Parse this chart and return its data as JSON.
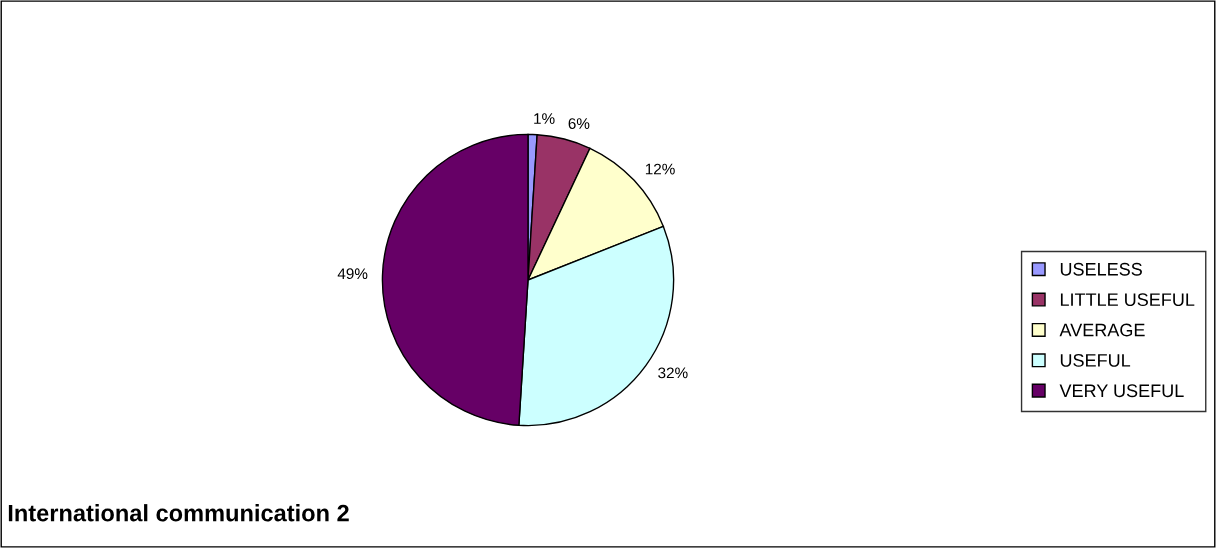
{
  "chart_data": {
    "type": "pie",
    "title": "International communication 2",
    "categories": [
      "USELESS",
      "LITTLE USEFUL",
      "AVERAGE",
      "USEFUL",
      "VERY USEFUL"
    ],
    "values": [
      1,
      6,
      12,
      32,
      49
    ],
    "value_labels": [
      "1%",
      "6%",
      "12%",
      "32%",
      "49%"
    ],
    "colors": [
      "#9999ff",
      "#993366",
      "#ffffcc",
      "#ccffff",
      "#660066"
    ],
    "legend": "right"
  }
}
